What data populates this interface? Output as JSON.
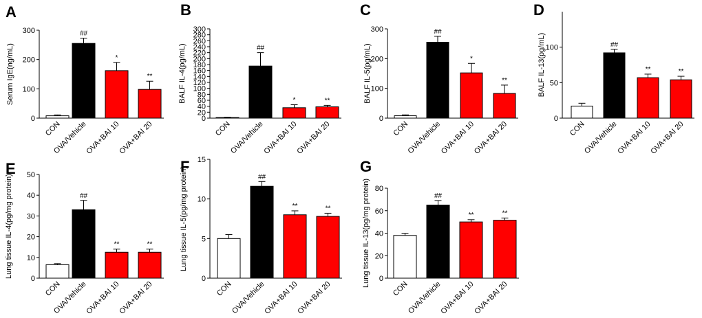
{
  "colors": {
    "con": "#ffffff",
    "vehicle": "#000000",
    "treat": "#ff0000",
    "stroke": "#000000"
  },
  "chart_data": [
    {
      "id": "A",
      "type": "bar",
      "panel_label": "A",
      "ylabel": "Serum IgE(ng/mL)",
      "categories": [
        "CON",
        "OVA/Vehicle",
        "OVA+BAI 10",
        "OVA+BAI 20"
      ],
      "values": [
        8,
        255,
        162,
        98
      ],
      "errors": [
        3,
        18,
        28,
        28
      ],
      "significance": [
        "",
        "##",
        "*",
        "**"
      ],
      "ylim": [
        0,
        300
      ],
      "yticks": [
        0,
        100,
        200,
        300
      ]
    },
    {
      "id": "B",
      "type": "bar",
      "panel_label": "B",
      "ylabel": "BALF IL-4(pg/mL)",
      "categories": [
        "CON",
        "OVA/Vehicle",
        "OVA+BAI 10",
        "OVA+BAI 20"
      ],
      "values": [
        2,
        175,
        35,
        38
      ],
      "errors": [
        1,
        45,
        10,
        5
      ],
      "significance": [
        "",
        "##",
        "*",
        "**"
      ],
      "ylim": [
        0,
        300
      ],
      "yticks": [
        0,
        20,
        40,
        60,
        80,
        100,
        120,
        140,
        160,
        180,
        200,
        220,
        240,
        260,
        280,
        300
      ]
    },
    {
      "id": "C",
      "type": "bar",
      "panel_label": "C",
      "ylabel": "BALF IL-5(pg/mL)",
      "categories": [
        "CON",
        "OVA/Vehicle",
        "OVA+BAI 10",
        "OVA+BAI 20"
      ],
      "values": [
        8,
        255,
        152,
        83
      ],
      "errors": [
        3,
        20,
        32,
        28
      ],
      "significance": [
        "",
        "##",
        "*",
        "**"
      ],
      "ylim": [
        0,
        300
      ],
      "yticks": [
        0,
        100,
        200,
        300
      ]
    },
    {
      "id": "D",
      "type": "bar",
      "panel_label": "D",
      "ylabel": "BALF IL-13(pg/mL)",
      "categories": [
        "CON",
        "OVA/Vehicle",
        "OVA+BAI 10",
        "OVA+BAI 20"
      ],
      "values": [
        17,
        92,
        57,
        54
      ],
      "errors": [
        4,
        5,
        5,
        5
      ],
      "significance": [
        "",
        "##",
        "**",
        "**"
      ],
      "ylim": [
        0,
        150
      ],
      "yticks": [
        0,
        50,
        100
      ]
    },
    {
      "id": "E",
      "type": "bar",
      "panel_label": "E",
      "ylabel": "Lung tissue IL-4(pg/mg protein)",
      "categories": [
        "CON",
        "OVA/Vehicle",
        "OVA+BAI 10",
        "OVA+BAI 20"
      ],
      "values": [
        6.5,
        33,
        12.5,
        12.5
      ],
      "errors": [
        0.5,
        4.5,
        1.5,
        1.5
      ],
      "significance": [
        "",
        "##",
        "**",
        "**"
      ],
      "ylim": [
        0,
        50
      ],
      "yticks": [
        0,
        10,
        20,
        30,
        40,
        50
      ]
    },
    {
      "id": "F",
      "type": "bar",
      "panel_label": "F",
      "ylabel": "Lung tissue IL-5(pg/mg protein)",
      "categories": [
        "CON",
        "OVA/Vehicle",
        "OVA+BAI 10",
        "OVA+BAI 20"
      ],
      "values": [
        5,
        11.6,
        8,
        7.8
      ],
      "errors": [
        0.5,
        0.6,
        0.5,
        0.4
      ],
      "significance": [
        "",
        "##",
        "**",
        "**"
      ],
      "ylim": [
        0,
        15
      ],
      "yticks": [
        0,
        5,
        10,
        15
      ]
    },
    {
      "id": "G",
      "type": "bar",
      "panel_label": "G",
      "ylabel": "Lung tissue IL-13(pg/mg protein)",
      "categories": [
        "CON",
        "OVA/Vehicle",
        "OVA+BAI 10",
        "OVA+BAI 20"
      ],
      "values": [
        38,
        65,
        50,
        51.5
      ],
      "errors": [
        2,
        4,
        2,
        2
      ],
      "significance": [
        "",
        "##",
        "**",
        "**"
      ],
      "ylim": [
        0,
        80
      ],
      "yticks": [
        0,
        20,
        40,
        60,
        80
      ]
    }
  ]
}
